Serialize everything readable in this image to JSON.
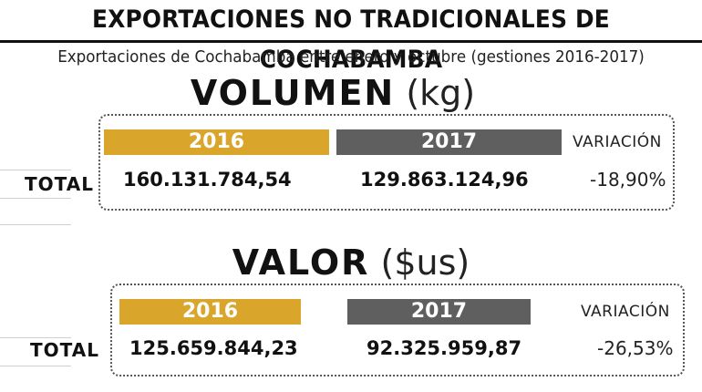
{
  "title": "EXPORTACIONES NO TRADICIONALES DE COCHABAMBA",
  "subtitle": "Exportaciones de Cochabamba entre enero y octubre (gestiones 2016-2017)",
  "volumen": {
    "heading": "VOLUMEN",
    "unit": "(kg)",
    "year_2016": "2016",
    "year_2017": "2017",
    "variation_label": "VARIACIÓN",
    "row_label": "TOTAL",
    "value_2016": "160.131.784,54",
    "value_2017": "129.863.124,96",
    "variation": "-18,90%"
  },
  "valor": {
    "heading": "VALOR",
    "unit": "($us)",
    "year_2016": "2016",
    "year_2017": "2017",
    "variation_label": "VARIACIÓN",
    "row_label": "TOTAL",
    "value_2016": "125.659.844,23",
    "value_2017": "92.325.959,87",
    "variation": "-26,53%"
  },
  "colors": {
    "year_2016": "#d9a52b",
    "year_2017": "#5f5f5f"
  }
}
